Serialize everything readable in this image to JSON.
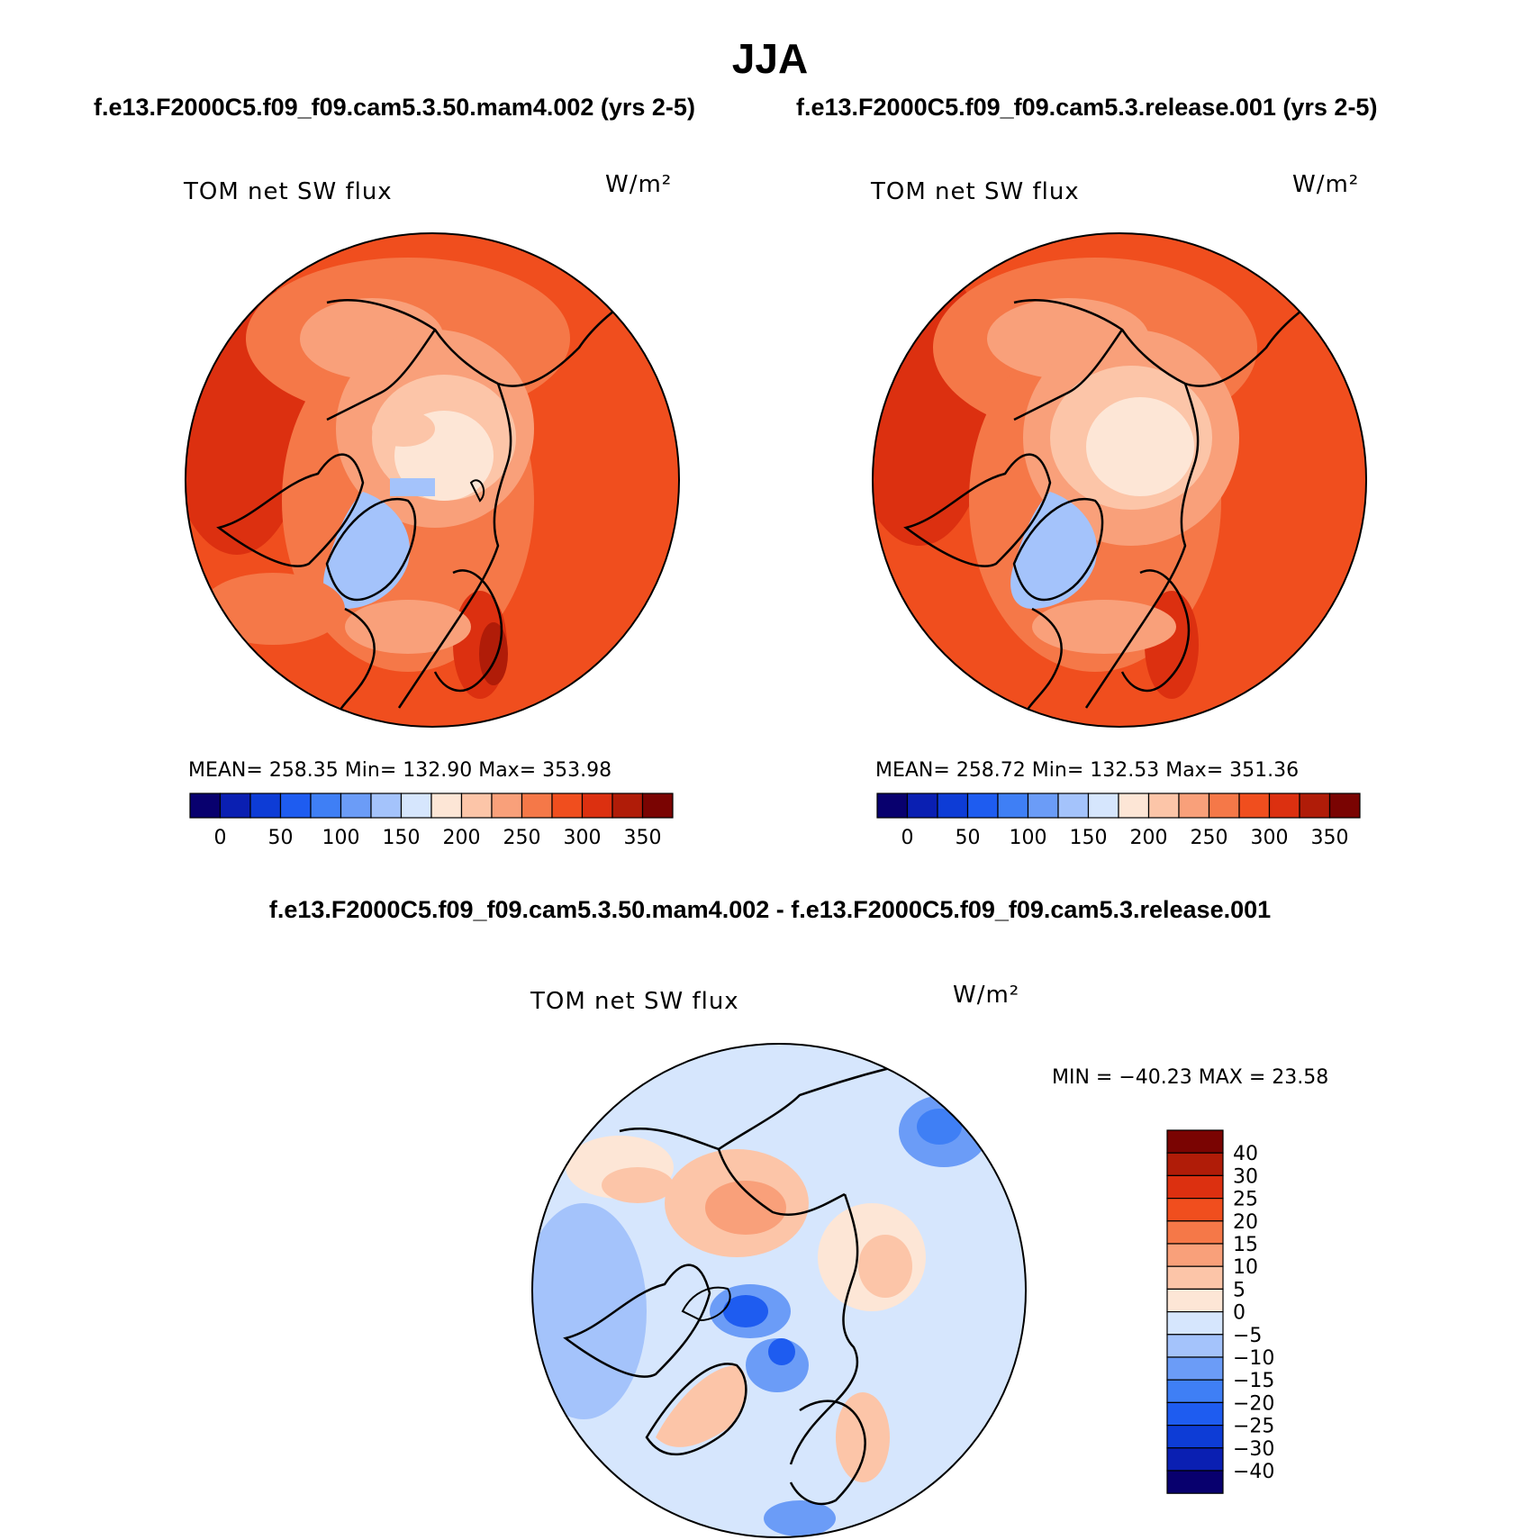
{
  "title": "JJA",
  "panels": [
    {
      "case_title": "f.e13.F2000C5.f09_f09.cam5.3.50.mam4.002 (yrs 2-5)",
      "variable": "TOM net SW flux",
      "units": "W/m²",
      "stats": {
        "mean": "258.35",
        "min": "132.90",
        "max": "353.98"
      },
      "stats_text": "MEAN= 258.35   Min= 132.90   Max= 353.98"
    },
    {
      "case_title": "f.e13.F2000C5.f09_f09.cam5.3.release.001 (yrs 2-5)",
      "variable": "TOM net SW flux",
      "units": "W/m²",
      "stats": {
        "mean": "258.72",
        "min": "132.53",
        "max": "351.36"
      },
      "stats_text": "MEAN= 258.72   Min= 132.53   Max= 351.36"
    }
  ],
  "difference": {
    "title": "f.e13.F2000C5.f09_f09.cam5.3.50.mam4.002 - f.e13.F2000C5.f09_f09.cam5.3.release.001",
    "variable": "TOM net SW flux",
    "units": "W/m²",
    "stats": {
      "min": "-40.23",
      "max": "23.58"
    },
    "stats_text": "MIN = −40.23 MAX =  23.58"
  },
  "colorbar_abs": {
    "colors": [
      "#08006e",
      "#0a1fb2",
      "#0d3cd6",
      "#1e5cf0",
      "#3f7ff5",
      "#6b9cf7",
      "#a4c3fb",
      "#d6e6fd",
      "#fde6d6",
      "#fcc5a8",
      "#f9a07a",
      "#f57848",
      "#f04e1e",
      "#dc3010",
      "#b01c08",
      "#7a0402"
    ],
    "labels": [
      "0",
      "50",
      "100",
      "150",
      "200",
      "250",
      "300",
      "350"
    ]
  },
  "colorbar_diff": {
    "colors": [
      "#08006e",
      "#0a1fb2",
      "#0d3cd6",
      "#1e5cf0",
      "#3f7ff5",
      "#6b9cf7",
      "#a4c3fb",
      "#d6e6fd",
      "#fde6d6",
      "#fcc5a8",
      "#f9a07a",
      "#f57848",
      "#f04e1e",
      "#dc3010",
      "#b01c08",
      "#7a0402"
    ],
    "labels": [
      "40",
      "30",
      "25",
      "20",
      "15",
      "10",
      "5",
      "0",
      "−5",
      "−10",
      "−15",
      "−20",
      "−25",
      "−30",
      "−40"
    ]
  }
}
